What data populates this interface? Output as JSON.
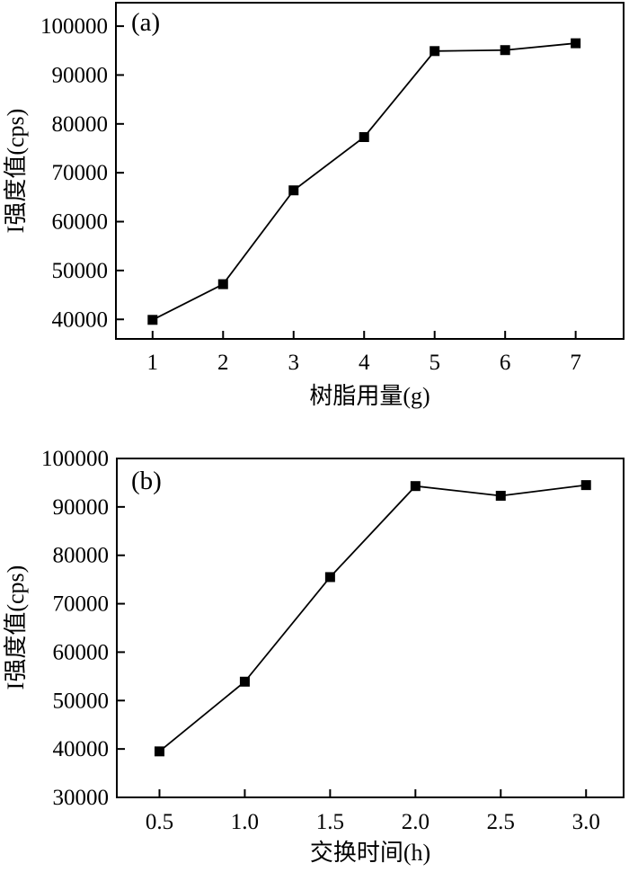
{
  "page": {
    "background": "#ffffff",
    "foreground": "#000000"
  },
  "chart_data": [
    {
      "type": "line",
      "panel_label": "(a)",
      "title": "",
      "xlabel": "树脂用量(g)",
      "ylabel": "I强度值(cps)",
      "x": [
        1,
        2,
        3,
        4,
        5,
        6,
        7
      ],
      "values": [
        39900,
        47200,
        66400,
        77300,
        94900,
        95100,
        96500
      ],
      "x_tick_values": [
        1,
        2,
        3,
        4,
        5,
        6,
        7
      ],
      "x_tick_labels": [
        "1",
        "2",
        "3",
        "4",
        "5",
        "6",
        "7"
      ],
      "y_tick_values": [
        40000,
        50000,
        60000,
        70000,
        80000,
        90000,
        100000
      ],
      "y_tick_labels": [
        "40000",
        "50000",
        "60000",
        "70000",
        "80000",
        "90000",
        "100000"
      ],
      "xlim": [
        0.48,
        7.68
      ],
      "ylim": [
        36000,
        104800
      ],
      "grid": false,
      "legend": "none",
      "marker": "filled-square",
      "line_color": "#000000",
      "marker_color": "#000000"
    },
    {
      "type": "line",
      "panel_label": "(b)",
      "title": "",
      "xlabel": "交换时间(h)",
      "ylabel": "I强度值(cps)",
      "x": [
        0.5,
        1.0,
        1.5,
        2.0,
        2.5,
        3.0
      ],
      "values": [
        39500,
        53900,
        75500,
        94300,
        92300,
        94500
      ],
      "x_tick_values": [
        0.5,
        1.0,
        1.5,
        2.0,
        2.5,
        3.0
      ],
      "x_tick_labels": [
        "0.5",
        "1.0",
        "1.5",
        "2.0",
        "2.5",
        "3.0"
      ],
      "y_tick_values": [
        30000,
        40000,
        50000,
        60000,
        70000,
        80000,
        90000,
        100000
      ],
      "y_tick_labels": [
        "30000",
        "40000",
        "50000",
        "60000",
        "70000",
        "80000",
        "90000",
        "100000"
      ],
      "xlim": [
        0.25,
        3.22
      ],
      "ylim": [
        30000,
        100000
      ],
      "grid": false,
      "legend": "none",
      "marker": "filled-square",
      "line_color": "#000000",
      "marker_color": "#000000"
    }
  ]
}
